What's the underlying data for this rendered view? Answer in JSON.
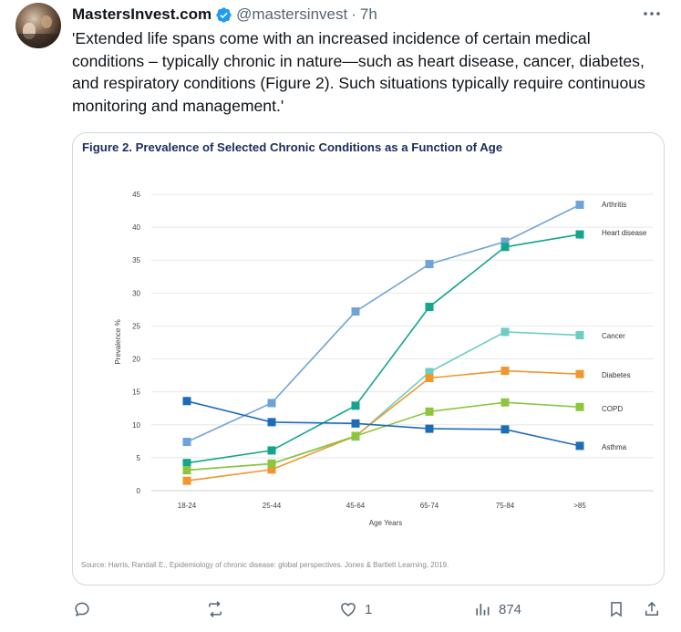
{
  "tweet": {
    "author_name": "MastersInvest.com",
    "handle": "@mastersinvest",
    "separator": "·",
    "time": "7h",
    "text": "'Extended life spans come with an increased incidence of certain medical conditions – typically chronic in nature—such as heart disease, cancer, diabetes, and respiratory conditions (Figure 2). Such situations typically require continuous monitoring and management.'",
    "verified_color": "#1d9bf0"
  },
  "figure": {
    "title": "Figure 2. Prevalence of Selected Chronic Conditions as a Function of Age",
    "source": "Source: Harris, Randall E., Epidemiology of chronic disease: global perspectives. Jones & Bartlett Learning, 2019."
  },
  "chart_data": {
    "type": "line",
    "title": "Figure 2. Prevalence of Selected Chronic Conditions as a Function of Age",
    "xlabel": "Age Years",
    "ylabel": "Prevalence %",
    "ylim": [
      0,
      45
    ],
    "yticks": [
      0,
      5,
      10,
      15,
      20,
      25,
      30,
      35,
      40,
      45
    ],
    "categories": [
      "18-24",
      "25-44",
      "45-64",
      "65-74",
      "75-84",
      ">85"
    ],
    "grid": true,
    "legend": "labels at line ends (right)",
    "series": [
      {
        "name": "Arthritis",
        "color": "#6fa3d8",
        "values": [
          7.4,
          13.3,
          27.2,
          34.4,
          37.8,
          43.4
        ]
      },
      {
        "name": "Heart disease",
        "color": "#13a58d",
        "values": [
          4.2,
          6.1,
          12.9,
          27.9,
          37.0,
          38.9
        ]
      },
      {
        "name": "Cancer",
        "color": "#6dcdc2",
        "values": [
          3.1,
          4.1,
          8.2,
          18.0,
          24.1,
          23.6
        ]
      },
      {
        "name": "Diabetes",
        "color": "#f0962e",
        "values": [
          1.5,
          3.2,
          8.3,
          17.1,
          18.2,
          17.7
        ]
      },
      {
        "name": "COPD",
        "color": "#8cc63f",
        "values": [
          3.1,
          4.1,
          8.3,
          12.0,
          13.4,
          12.7
        ]
      },
      {
        "name": "Asthma",
        "color": "#1e6bb8",
        "values": [
          13.6,
          10.4,
          10.2,
          9.4,
          9.3,
          6.8
        ]
      }
    ]
  },
  "actions": {
    "reply_count": "",
    "repost_count": "",
    "like_count": "1",
    "views_count": "874"
  },
  "icons": {
    "more": "more-horizontal-icon",
    "reply": "reply-icon",
    "repost": "repost-icon",
    "like": "heart-icon",
    "views": "views-chart-icon",
    "bookmark": "bookmark-icon",
    "share": "share-icon"
  }
}
